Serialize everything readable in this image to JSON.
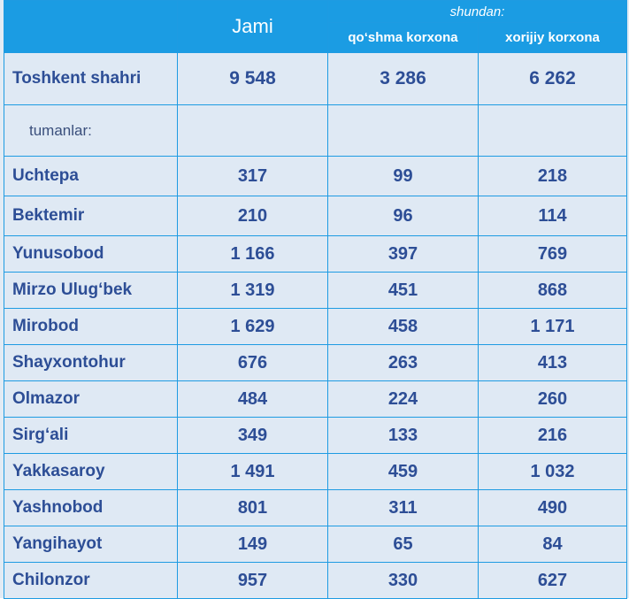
{
  "header": {
    "jami": "Jami",
    "shundan": "shundan:",
    "qoshma": "qo‘shma korxona",
    "xorijiy": "xorijiy korxona"
  },
  "city": {
    "name": "Toshkent shahri",
    "jami": "9 548",
    "qoshma": "3 286",
    "xorijiy": "6 262"
  },
  "section_label": "tumanlar:",
  "districts": [
    {
      "name": "Uchtepa",
      "jami": "317",
      "qoshma": "99",
      "xorijiy": "218"
    },
    {
      "name": "Bektemir",
      "jami": "210",
      "qoshma": "96",
      "xorijiy": "114"
    },
    {
      "name": "Yunusobod",
      "jami": "1 166",
      "qoshma": "397",
      "xorijiy": "769"
    },
    {
      "name": "Mirzo Ulug‘bek",
      "jami": "1 319",
      "qoshma": "451",
      "xorijiy": "868"
    },
    {
      "name": "Mirobod",
      "jami": "1 629",
      "qoshma": "458",
      "xorijiy": "1 171"
    },
    {
      "name": "Shayxontohur",
      "jami": "676",
      "qoshma": "263",
      "xorijiy": "413"
    },
    {
      "name": "Olmazor",
      "jami": "484",
      "qoshma": "224",
      "xorijiy": "260"
    },
    {
      "name": "Sirg‘ali",
      "jami": "349",
      "qoshma": "133",
      "xorijiy": "216"
    },
    {
      "name": "Yakkasaroy",
      "jami": "1 491",
      "qoshma": "459",
      "xorijiy": "1 032"
    },
    {
      "name": "Yashnobod",
      "jami": "801",
      "qoshma": "311",
      "xorijiy": "490"
    },
    {
      "name": "Yangihayot",
      "jami": "149",
      "qoshma": "65",
      "xorijiy": "84"
    },
    {
      "name": "Chilonzor",
      "jami": "957",
      "qoshma": "330",
      "xorijiy": "627"
    }
  ]
}
